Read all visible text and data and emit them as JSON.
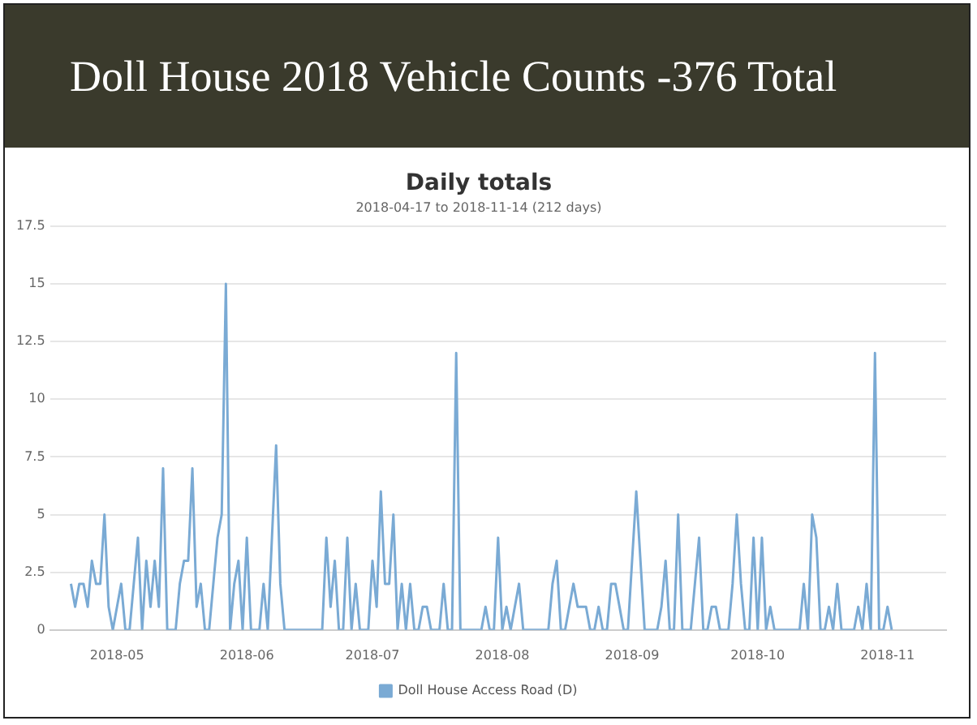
{
  "chart_data": {
    "type": "line",
    "title": "Doll House 2018 Vehicle Counts -376 Total",
    "subtitle": "Daily totals",
    "annotations": [
      "2018-04-17 to 2018-11-14 (212 days)"
    ],
    "x": [
      "2018-04-20",
      "2018-04-21",
      "2018-04-22",
      "2018-04-23",
      "2018-04-24",
      "2018-04-25",
      "2018-04-26",
      "2018-04-27",
      "2018-04-28",
      "2018-04-29",
      "2018-04-30",
      "2018-05-01",
      "2018-05-02",
      "2018-05-03",
      "2018-05-04",
      "2018-05-05",
      "2018-05-06",
      "2018-05-07",
      "2018-05-08",
      "2018-05-09",
      "2018-05-10",
      "2018-05-11",
      "2018-05-12",
      "2018-05-13",
      "2018-05-14",
      "2018-05-15",
      "2018-05-16",
      "2018-05-17",
      "2018-05-18",
      "2018-05-19",
      "2018-05-20",
      "2018-05-21",
      "2018-05-22",
      "2018-05-23",
      "2018-05-24",
      "2018-05-25",
      "2018-05-26",
      "2018-05-27",
      "2018-05-28",
      "2018-05-29",
      "2018-05-30",
      "2018-05-31",
      "2018-06-01",
      "2018-06-02",
      "2018-06-03",
      "2018-06-04",
      "2018-06-05",
      "2018-06-06",
      "2018-06-07",
      "2018-06-08",
      "2018-06-09",
      "2018-06-10",
      "2018-06-11",
      "2018-06-12",
      "2018-06-13",
      "2018-06-14",
      "2018-06-15",
      "2018-06-16",
      "2018-06-17",
      "2018-06-18",
      "2018-06-19",
      "2018-06-20",
      "2018-06-21",
      "2018-06-22",
      "2018-06-23",
      "2018-06-24",
      "2018-06-25",
      "2018-06-26",
      "2018-06-27",
      "2018-06-28",
      "2018-06-29",
      "2018-06-30",
      "2018-07-01",
      "2018-07-02",
      "2018-07-03",
      "2018-07-04",
      "2018-07-05",
      "2018-07-06",
      "2018-07-07",
      "2018-07-08",
      "2018-07-09",
      "2018-07-10",
      "2018-07-11",
      "2018-07-12",
      "2018-07-13",
      "2018-07-14",
      "2018-07-15",
      "2018-07-16",
      "2018-07-17",
      "2018-07-18",
      "2018-07-19",
      "2018-07-20",
      "2018-07-21",
      "2018-07-22",
      "2018-07-23",
      "2018-07-24",
      "2018-07-25",
      "2018-07-26",
      "2018-07-27",
      "2018-07-28",
      "2018-07-29",
      "2018-07-30",
      "2018-07-31",
      "2018-08-01",
      "2018-08-02",
      "2018-08-03",
      "2018-08-04",
      "2018-08-05",
      "2018-08-06",
      "2018-08-07",
      "2018-08-08",
      "2018-08-09",
      "2018-08-10",
      "2018-08-11",
      "2018-08-12",
      "2018-08-13",
      "2018-08-14",
      "2018-08-15",
      "2018-08-16",
      "2018-08-17",
      "2018-08-18",
      "2018-08-19",
      "2018-08-20",
      "2018-08-21",
      "2018-08-22",
      "2018-08-23",
      "2018-08-24",
      "2018-08-25",
      "2018-08-26",
      "2018-08-27",
      "2018-08-28",
      "2018-08-29",
      "2018-08-30",
      "2018-08-31",
      "2018-09-01",
      "2018-09-02",
      "2018-09-03",
      "2018-09-04",
      "2018-09-05",
      "2018-09-06",
      "2018-09-07",
      "2018-09-08",
      "2018-09-09",
      "2018-09-10",
      "2018-09-11",
      "2018-09-12",
      "2018-09-13",
      "2018-09-14",
      "2018-09-15",
      "2018-09-16",
      "2018-09-17",
      "2018-09-18",
      "2018-09-19",
      "2018-09-20",
      "2018-09-21",
      "2018-09-22",
      "2018-09-23",
      "2018-09-24",
      "2018-09-25",
      "2018-09-26",
      "2018-09-27",
      "2018-09-28",
      "2018-09-29",
      "2018-09-30",
      "2018-10-01",
      "2018-10-02",
      "2018-10-03",
      "2018-10-04",
      "2018-10-05",
      "2018-10-06",
      "2018-10-07",
      "2018-10-08",
      "2018-10-09",
      "2018-10-10",
      "2018-10-11",
      "2018-10-12",
      "2018-10-13",
      "2018-10-14",
      "2018-10-15",
      "2018-10-16",
      "2018-10-17",
      "2018-10-18",
      "2018-10-19",
      "2018-10-20",
      "2018-10-21",
      "2018-10-22",
      "2018-10-23",
      "2018-10-24",
      "2018-10-25",
      "2018-10-26",
      "2018-10-27",
      "2018-10-28",
      "2018-10-29",
      "2018-10-30",
      "2018-10-31",
      "2018-11-01",
      "2018-11-02"
    ],
    "series": [
      {
        "name": "Doll House Access Road (D)",
        "color": "#7aaad4",
        "values": [
          2,
          1,
          2,
          2,
          1,
          3,
          2,
          2,
          5,
          1,
          0,
          1,
          2,
          0,
          0,
          2,
          4,
          0,
          3,
          1,
          3,
          1,
          7,
          0,
          0,
          0,
          2,
          3,
          3,
          7,
          1,
          2,
          0,
          0,
          2,
          4,
          5,
          15,
          0,
          2,
          3,
          0,
          4,
          0,
          0,
          0,
          2,
          0,
          4,
          8,
          2,
          0,
          0,
          0,
          0,
          0,
          0,
          0,
          0,
          0,
          0,
          4,
          1,
          3,
          0,
          0,
          4,
          0,
          2,
          0,
          0,
          0,
          3,
          1,
          6,
          2,
          2,
          5,
          0,
          2,
          0,
          2,
          0,
          0,
          1,
          1,
          0,
          0,
          0,
          2,
          0,
          0,
          12,
          0,
          0,
          0,
          0,
          0,
          0,
          1,
          0,
          0,
          4,
          0,
          1,
          0,
          1,
          2,
          0,
          0,
          0,
          0,
          0,
          0,
          0,
          2,
          3,
          0,
          0,
          1,
          2,
          1,
          1,
          1,
          0,
          0,
          1,
          0,
          0,
          2,
          2,
          1,
          0,
          0,
          3,
          6,
          3,
          0,
          0,
          0,
          0,
          1,
          3,
          0,
          0,
          5,
          0,
          0,
          0,
          2,
          4,
          0,
          0,
          1,
          1,
          0,
          0,
          0,
          2,
          5,
          2,
          0,
          0,
          4,
          0,
          4,
          0,
          1,
          0,
          0,
          0,
          0,
          0,
          0,
          0,
          2,
          0,
          5,
          4,
          0,
          0,
          1,
          0,
          2,
          0,
          0,
          0,
          0,
          1,
          0,
          2,
          0,
          12,
          0,
          0,
          1,
          0
        ]
      }
    ],
    "xlim": [
      "2018-04-15",
      "2018-11-15"
    ],
    "xticks": [
      {
        "value": "2018-05-01",
        "label": "2018-05"
      },
      {
        "value": "2018-06-01",
        "label": "2018-06"
      },
      {
        "value": "2018-07-01",
        "label": "2018-07"
      },
      {
        "value": "2018-08-01",
        "label": "2018-08"
      },
      {
        "value": "2018-09-01",
        "label": "2018-09"
      },
      {
        "value": "2018-10-01",
        "label": "2018-10"
      },
      {
        "value": "2018-11-01",
        "label": "2018-11"
      }
    ],
    "ylim": [
      0,
      17.5
    ],
    "yticks": [
      0,
      2.5,
      5,
      7.5,
      10,
      12.5,
      15,
      17.5
    ],
    "grid": "y",
    "legend": "bottom",
    "marker": "none",
    "line_style": "solid"
  }
}
